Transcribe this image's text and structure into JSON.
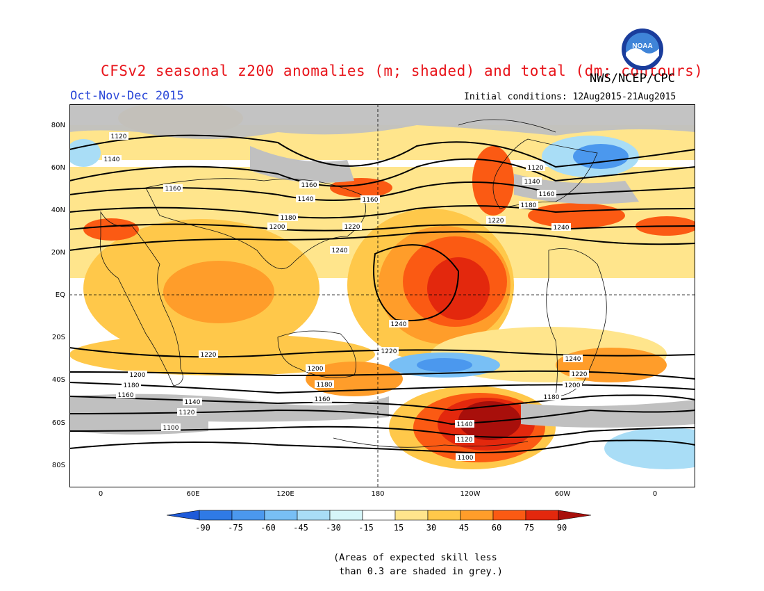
{
  "header": {
    "title": "CFSv2 seasonal z200 anomalies (m; shaded) and total (dm; contours)",
    "agency": "NWS/NCEP/CPC",
    "season": "Oct-Nov-Dec 2015",
    "initial_conditions": "Initial conditions: 12Aug2015-21Aug2015",
    "logo_text": "NOAA"
  },
  "map": {
    "lat_labels": [
      "80N",
      "60N",
      "40N",
      "20N",
      "EQ",
      "20S",
      "40S",
      "60S",
      "80S"
    ],
    "lon_labels": [
      "0",
      "60E",
      "120E",
      "180",
      "120W",
      "60W",
      "0"
    ],
    "contour_levels": [
      "1100",
      "1120",
      "1140",
      "1160",
      "1180",
      "1200",
      "1220",
      "1240"
    ]
  },
  "colorbar": {
    "labels": [
      "-90",
      "-75",
      "-60",
      "-45",
      "-30",
      "-15",
      "15",
      "30",
      "45",
      "60",
      "75",
      "90"
    ],
    "colors": [
      "#1e5ad9",
      "#2f7ae6",
      "#4b98ee",
      "#78bff5",
      "#a9ddf6",
      "#d6f6f9",
      "#ffffff",
      "#ffe58c",
      "#ffc84a",
      "#ff9d2a",
      "#fb5a13",
      "#e3280d",
      "#a80f0b"
    ]
  },
  "note": "(Areas of expected skill less\n than 0.3 are shaded in grey.)"
}
